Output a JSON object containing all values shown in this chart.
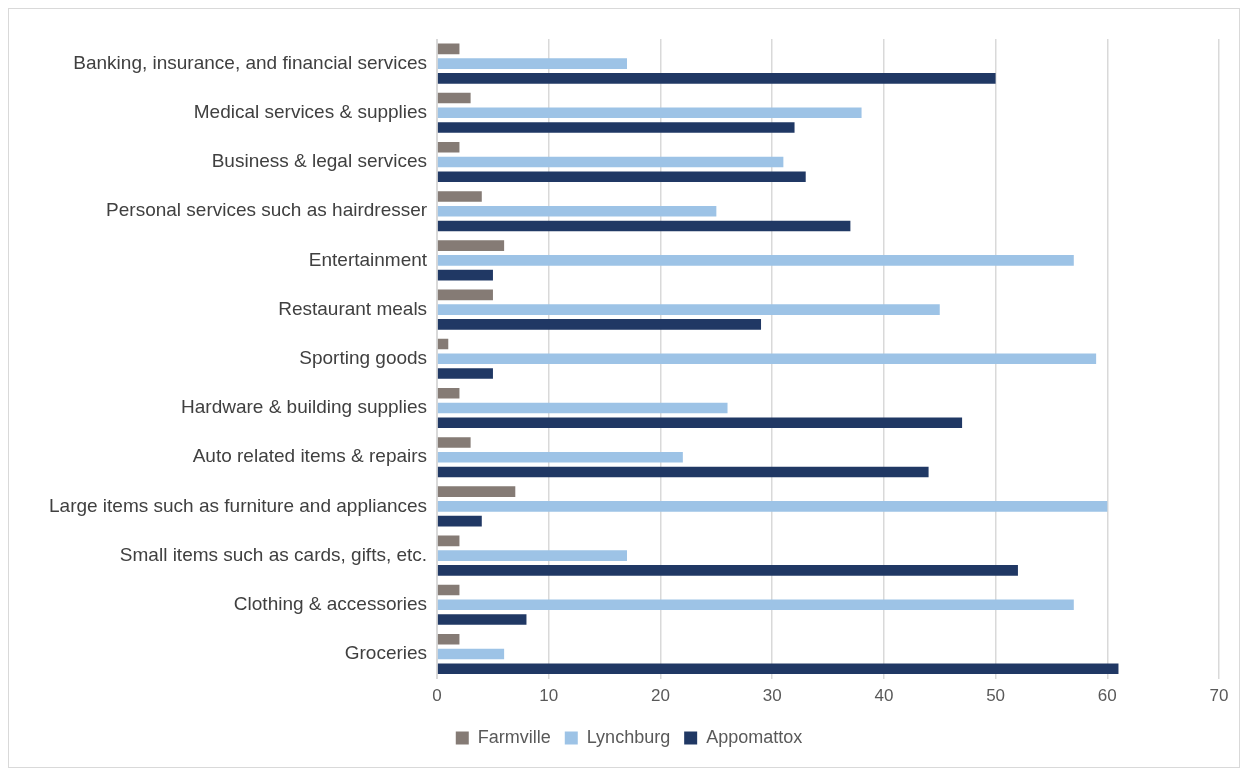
{
  "chart_data": {
    "type": "bar",
    "orientation": "horizontal",
    "categories": [
      "Banking, insurance, and financial services",
      "Medical services & supplies",
      "Business & legal services",
      "Personal services such as hairdresser",
      "Entertainment",
      "Restaurant meals",
      "Sporting goods",
      "Hardware & building supplies",
      "Auto related items & repairs",
      "Large items such as furniture and appliances",
      "Small items such as cards, gifts, etc.",
      "Clothing & accessories",
      "Groceries"
    ],
    "series": [
      {
        "name": "Farmville",
        "color": "#857b75",
        "values": [
          2,
          3,
          2,
          4,
          6,
          5,
          1,
          2,
          3,
          7,
          2,
          2,
          2
        ]
      },
      {
        "name": "Lynchburg",
        "color": "#9dc3e6",
        "values": [
          17,
          38,
          31,
          25,
          57,
          45,
          59,
          26,
          22,
          60,
          17,
          57,
          6
        ]
      },
      {
        "name": "Appomattox",
        "color": "#203864",
        "values": [
          50,
          32,
          33,
          37,
          5,
          29,
          5,
          47,
          44,
          4,
          52,
          8,
          61
        ]
      }
    ],
    "xlim": [
      0,
      70
    ],
    "xticks": [
      0,
      10,
      20,
      30,
      40,
      50,
      60,
      70
    ],
    "grid": "x",
    "legend": "bottom"
  }
}
